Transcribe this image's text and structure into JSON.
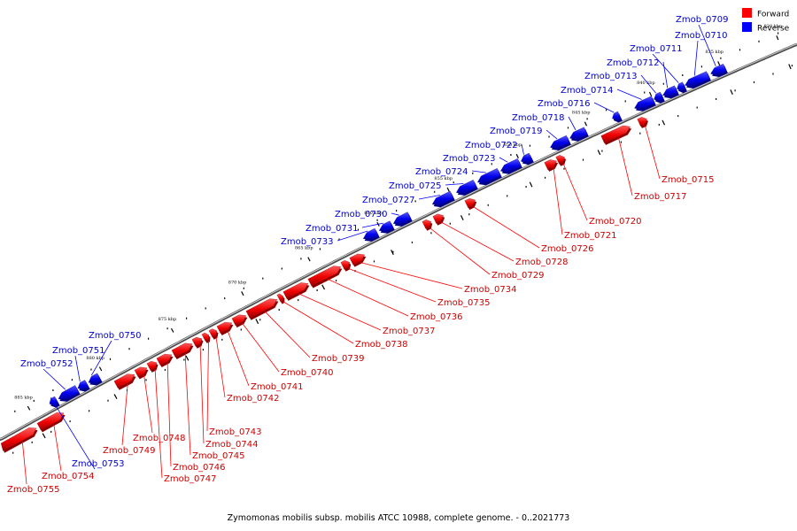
{
  "legend": {
    "forward": {
      "label": "Forward",
      "color": "#ff0000"
    },
    "reverse": {
      "label": "Reverse",
      "color": "#0000ff"
    }
  },
  "caption": "Zymomonas mobilis subsp. mobilis ATCC 10988, complete genome. - 0..2021773",
  "ticks": [
    "830 kbp",
    "835 kbp",
    "840 kbp",
    "845 kbp",
    "850 kbp",
    "855 kbp",
    "860 kbp",
    "865 kbp",
    "870 kbp",
    "875 kbp",
    "880 kbp",
    "885 kbp"
  ],
  "genes": [
    {
      "name": "Zmob_0709",
      "strand": "reverse"
    },
    {
      "name": "Zmob_0710",
      "strand": "reverse"
    },
    {
      "name": "Zmob_0711",
      "strand": "reverse"
    },
    {
      "name": "Zmob_0712",
      "strand": "reverse"
    },
    {
      "name": "Zmob_0713",
      "strand": "reverse"
    },
    {
      "name": "Zmob_0714",
      "strand": "reverse"
    },
    {
      "name": "Zmob_0716",
      "strand": "reverse"
    },
    {
      "name": "Zmob_0718",
      "strand": "reverse"
    },
    {
      "name": "Zmob_0719",
      "strand": "reverse"
    },
    {
      "name": "Zmob_0722",
      "strand": "reverse"
    },
    {
      "name": "Zmob_0723",
      "strand": "reverse"
    },
    {
      "name": "Zmob_0724",
      "strand": "reverse"
    },
    {
      "name": "Zmob_0725",
      "strand": "reverse"
    },
    {
      "name": "Zmob_0727",
      "strand": "reverse"
    },
    {
      "name": "Zmob_0730",
      "strand": "reverse"
    },
    {
      "name": "Zmob_0731",
      "strand": "reverse"
    },
    {
      "name": "Zmob_0733",
      "strand": "reverse"
    },
    {
      "name": "Zmob_0750",
      "strand": "reverse"
    },
    {
      "name": "Zmob_0751",
      "strand": "reverse"
    },
    {
      "name": "Zmob_0752",
      "strand": "reverse"
    },
    {
      "name": "Zmob_0753",
      "strand": "reverse"
    },
    {
      "name": "Zmob_0715",
      "strand": "forward"
    },
    {
      "name": "Zmob_0717",
      "strand": "forward"
    },
    {
      "name": "Zmob_0720",
      "strand": "forward"
    },
    {
      "name": "Zmob_0721",
      "strand": "forward"
    },
    {
      "name": "Zmob_0726",
      "strand": "forward"
    },
    {
      "name": "Zmob_0728",
      "strand": "forward"
    },
    {
      "name": "Zmob_0729",
      "strand": "forward"
    },
    {
      "name": "Zmob_0734",
      "strand": "forward"
    },
    {
      "name": "Zmob_0735",
      "strand": "forward"
    },
    {
      "name": "Zmob_0736",
      "strand": "forward"
    },
    {
      "name": "Zmob_0737",
      "strand": "forward"
    },
    {
      "name": "Zmob_0738",
      "strand": "forward"
    },
    {
      "name": "Zmob_0739",
      "strand": "forward"
    },
    {
      "name": "Zmob_0740",
      "strand": "forward"
    },
    {
      "name": "Zmob_0741",
      "strand": "forward"
    },
    {
      "name": "Zmob_0742",
      "strand": "forward"
    },
    {
      "name": "Zmob_0743",
      "strand": "forward"
    },
    {
      "name": "Zmob_0744",
      "strand": "forward"
    },
    {
      "name": "Zmob_0745",
      "strand": "forward"
    },
    {
      "name": "Zmob_0746",
      "strand": "forward"
    },
    {
      "name": "Zmob_0747",
      "strand": "forward"
    },
    {
      "name": "Zmob_0748",
      "strand": "forward"
    },
    {
      "name": "Zmob_0749",
      "strand": "forward"
    },
    {
      "name": "Zmob_0754",
      "strand": "forward"
    },
    {
      "name": "Zmob_0755",
      "strand": "forward"
    }
  ]
}
